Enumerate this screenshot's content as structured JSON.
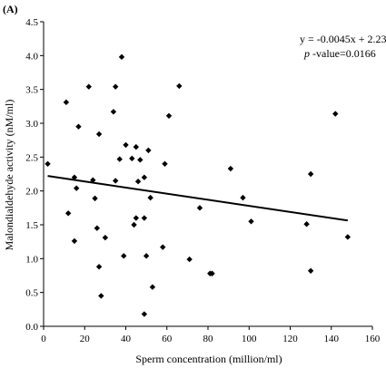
{
  "chart_data": {
    "type": "scatter",
    "panel_label": "(A)",
    "xlabel": "Sperm concentration (million/ml)",
    "ylabel": "Malondialdehyde activity (nM/ml)",
    "xlim": [
      0,
      160
    ],
    "ylim": [
      0,
      4.5
    ],
    "x_ticks": [
      0,
      20,
      40,
      60,
      80,
      100,
      120,
      140,
      160
    ],
    "y_ticks": [
      0.0,
      0.5,
      1.0,
      1.5,
      2.0,
      2.5,
      3.0,
      3.5,
      4.0,
      4.5
    ],
    "x_tick_labels": [
      "0",
      "20",
      "40",
      "60",
      "80",
      "100",
      "120",
      "140",
      "160"
    ],
    "y_tick_labels": [
      "0.0",
      "0.5",
      "1.0",
      "1.5",
      "2.0",
      "2.5",
      "3.0",
      "3.5",
      "4.0",
      "4.5"
    ],
    "grid": false,
    "annotations": {
      "equation": "y = -0.0045x + 2.23",
      "p_label": "p",
      "p_rest": " -value=0.0166"
    },
    "trendline": {
      "slope": -0.0045,
      "intercept": 2.23,
      "x_range": [
        2,
        148
      ]
    },
    "points": [
      {
        "x": 2,
        "y": 2.4
      },
      {
        "x": 11,
        "y": 3.31
      },
      {
        "x": 12,
        "y": 1.67
      },
      {
        "x": 15,
        "y": 2.2
      },
      {
        "x": 15,
        "y": 1.26
      },
      {
        "x": 16,
        "y": 2.04
      },
      {
        "x": 17,
        "y": 2.95
      },
      {
        "x": 22,
        "y": 3.54
      },
      {
        "x": 24,
        "y": 2.16
      },
      {
        "x": 25,
        "y": 1.89
      },
      {
        "x": 26,
        "y": 1.45
      },
      {
        "x": 27,
        "y": 2.84
      },
      {
        "x": 27,
        "y": 0.88
      },
      {
        "x": 28,
        "y": 0.45
      },
      {
        "x": 30,
        "y": 1.31
      },
      {
        "x": 34,
        "y": 3.17
      },
      {
        "x": 35,
        "y": 3.54
      },
      {
        "x": 35,
        "y": 2.15
      },
      {
        "x": 37,
        "y": 2.47
      },
      {
        "x": 38,
        "y": 3.98
      },
      {
        "x": 39,
        "y": 1.04
      },
      {
        "x": 40,
        "y": 2.68
      },
      {
        "x": 43,
        "y": 2.48
      },
      {
        "x": 44,
        "y": 1.5
      },
      {
        "x": 45,
        "y": 2.65
      },
      {
        "x": 45,
        "y": 1.6
      },
      {
        "x": 46,
        "y": 2.14
      },
      {
        "x": 47,
        "y": 2.46
      },
      {
        "x": 49,
        "y": 2.2
      },
      {
        "x": 49,
        "y": 1.6
      },
      {
        "x": 49,
        "y": 0.18
      },
      {
        "x": 50,
        "y": 1.04
      },
      {
        "x": 51,
        "y": 2.6
      },
      {
        "x": 52,
        "y": 1.9
      },
      {
        "x": 53,
        "y": 0.58
      },
      {
        "x": 58,
        "y": 1.17
      },
      {
        "x": 59,
        "y": 2.4
      },
      {
        "x": 61,
        "y": 3.11
      },
      {
        "x": 66,
        "y": 3.55
      },
      {
        "x": 71,
        "y": 0.99
      },
      {
        "x": 76,
        "y": 1.75
      },
      {
        "x": 81,
        "y": 0.78
      },
      {
        "x": 82,
        "y": 0.78
      },
      {
        "x": 91,
        "y": 2.33
      },
      {
        "x": 97,
        "y": 1.9
      },
      {
        "x": 101,
        "y": 1.55
      },
      {
        "x": 128,
        "y": 1.51
      },
      {
        "x": 130,
        "y": 2.25
      },
      {
        "x": 130,
        "y": 0.82
      },
      {
        "x": 142,
        "y": 3.14
      },
      {
        "x": 148,
        "y": 1.32
      }
    ]
  }
}
